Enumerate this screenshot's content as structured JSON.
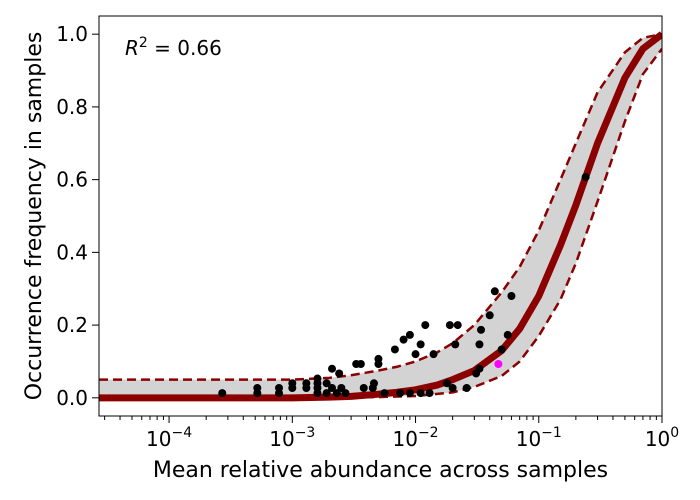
{
  "chart_data": {
    "type": "scatter",
    "xlabel": "Mean relative abundance across samples",
    "ylabel": "Occurrence frequency in samples",
    "x_scale": "log",
    "xlim": [
      2.7e-05,
      1.0
    ],
    "ylim": [
      -0.05,
      1.05
    ],
    "x_ticks": [
      {
        "value": 0.0001,
        "base": "10",
        "exp": "−4"
      },
      {
        "value": 0.001,
        "base": "10",
        "exp": "−3"
      },
      {
        "value": 0.01,
        "base": "10",
        "exp": "−2"
      },
      {
        "value": 0.1,
        "base": "10",
        "exp": "−1"
      },
      {
        "value": 1,
        "base": "10",
        "exp": "0"
      }
    ],
    "y_ticks": [
      "0.0",
      "0.2",
      "0.4",
      "0.6",
      "0.8",
      "1.0"
    ],
    "y_tick_values": [
      0.0,
      0.2,
      0.4,
      0.6,
      0.8,
      1.0
    ],
    "annotation": {
      "lhs": "R",
      "sup": "2",
      "rhs": " = 0.66"
    },
    "grid": false,
    "colors": {
      "fit_line": "#8b0000",
      "confidence_band": "#d3d3d3",
      "points": "#000000",
      "highlight_point": "#ff00ff"
    },
    "fit_curve": [
      {
        "x": 2.7e-05,
        "y": 0.0
      },
      {
        "x": 0.001,
        "y": 0.0
      },
      {
        "x": 0.002,
        "y": 0.002
      },
      {
        "x": 0.003,
        "y": 0.004
      },
      {
        "x": 0.005,
        "y": 0.01
      },
      {
        "x": 0.007,
        "y": 0.015
      },
      {
        "x": 0.01,
        "y": 0.022
      },
      {
        "x": 0.015,
        "y": 0.035
      },
      {
        "x": 0.02,
        "y": 0.05
      },
      {
        "x": 0.03,
        "y": 0.075
      },
      {
        "x": 0.05,
        "y": 0.13
      },
      {
        "x": 0.07,
        "y": 0.19
      },
      {
        "x": 0.1,
        "y": 0.28
      },
      {
        "x": 0.15,
        "y": 0.42
      },
      {
        "x": 0.2,
        "y": 0.53
      },
      {
        "x": 0.3,
        "y": 0.7
      },
      {
        "x": 0.5,
        "y": 0.88
      },
      {
        "x": 0.7,
        "y": 0.96
      },
      {
        "x": 1.0,
        "y": 1.0
      }
    ],
    "upper_bound": [
      {
        "x": 2.7e-05,
        "y": 0.05
      },
      {
        "x": 0.001,
        "y": 0.05
      },
      {
        "x": 0.002,
        "y": 0.055
      },
      {
        "x": 0.003,
        "y": 0.062
      },
      {
        "x": 0.005,
        "y": 0.075
      },
      {
        "x": 0.007,
        "y": 0.085
      },
      {
        "x": 0.01,
        "y": 0.1
      },
      {
        "x": 0.015,
        "y": 0.125
      },
      {
        "x": 0.02,
        "y": 0.15
      },
      {
        "x": 0.03,
        "y": 0.2
      },
      {
        "x": 0.05,
        "y": 0.29
      },
      {
        "x": 0.07,
        "y": 0.36
      },
      {
        "x": 0.1,
        "y": 0.46
      },
      {
        "x": 0.15,
        "y": 0.6
      },
      {
        "x": 0.2,
        "y": 0.7
      },
      {
        "x": 0.3,
        "y": 0.84
      },
      {
        "x": 0.5,
        "y": 0.95
      },
      {
        "x": 0.7,
        "y": 0.99
      },
      {
        "x": 1.0,
        "y": 1.0
      }
    ],
    "lower_bound": [
      {
        "x": 2.7e-05,
        "y": 0.0
      },
      {
        "x": 0.002,
        "y": 0.0
      },
      {
        "x": 0.005,
        "y": 0.002
      },
      {
        "x": 0.01,
        "y": 0.005
      },
      {
        "x": 0.02,
        "y": 0.015
      },
      {
        "x": 0.03,
        "y": 0.03
      },
      {
        "x": 0.05,
        "y": 0.06
      },
      {
        "x": 0.07,
        "y": 0.1
      },
      {
        "x": 0.1,
        "y": 0.17
      },
      {
        "x": 0.15,
        "y": 0.27
      },
      {
        "x": 0.2,
        "y": 0.37
      },
      {
        "x": 0.3,
        "y": 0.54
      },
      {
        "x": 0.5,
        "y": 0.76
      },
      {
        "x": 0.7,
        "y": 0.89
      },
      {
        "x": 1.0,
        "y": 0.96
      }
    ],
    "points": [
      {
        "x": 0.00027,
        "y": 0.013
      },
      {
        "x": 0.00052,
        "y": 0.013
      },
      {
        "x": 0.00052,
        "y": 0.027
      },
      {
        "x": 0.00078,
        "y": 0.013
      },
      {
        "x": 0.00078,
        "y": 0.027
      },
      {
        "x": 0.001,
        "y": 0.027
      },
      {
        "x": 0.001,
        "y": 0.04
      },
      {
        "x": 0.0013,
        "y": 0.027
      },
      {
        "x": 0.0013,
        "y": 0.04
      },
      {
        "x": 0.0016,
        "y": 0.013
      },
      {
        "x": 0.0016,
        "y": 0.027
      },
      {
        "x": 0.0016,
        "y": 0.04
      },
      {
        "x": 0.0016,
        "y": 0.053
      },
      {
        "x": 0.0019,
        "y": 0.013
      },
      {
        "x": 0.0019,
        "y": 0.04
      },
      {
        "x": 0.0021,
        "y": 0.027
      },
      {
        "x": 0.0021,
        "y": 0.08
      },
      {
        "x": 0.0023,
        "y": 0.013
      },
      {
        "x": 0.0024,
        "y": 0.067
      },
      {
        "x": 0.0025,
        "y": 0.027
      },
      {
        "x": 0.0027,
        "y": 0.013
      },
      {
        "x": 0.0033,
        "y": 0.093
      },
      {
        "x": 0.0036,
        "y": 0.093
      },
      {
        "x": 0.0038,
        "y": 0.027
      },
      {
        "x": 0.0045,
        "y": 0.027
      },
      {
        "x": 0.0046,
        "y": 0.04
      },
      {
        "x": 0.005,
        "y": 0.093
      },
      {
        "x": 0.005,
        "y": 0.107
      },
      {
        "x": 0.0056,
        "y": 0.013
      },
      {
        "x": 0.0068,
        "y": 0.133
      },
      {
        "x": 0.0075,
        "y": 0.013
      },
      {
        "x": 0.008,
        "y": 0.16
      },
      {
        "x": 0.009,
        "y": 0.013
      },
      {
        "x": 0.009,
        "y": 0.173
      },
      {
        "x": 0.01,
        "y": 0.12
      },
      {
        "x": 0.011,
        "y": 0.147
      },
      {
        "x": 0.011,
        "y": 0.013
      },
      {
        "x": 0.012,
        "y": 0.2
      },
      {
        "x": 0.013,
        "y": 0.013
      },
      {
        "x": 0.014,
        "y": 0.12
      },
      {
        "x": 0.018,
        "y": 0.04
      },
      {
        "x": 0.019,
        "y": 0.2
      },
      {
        "x": 0.02,
        "y": 0.027
      },
      {
        "x": 0.021,
        "y": 0.147
      },
      {
        "x": 0.022,
        "y": 0.2
      },
      {
        "x": 0.026,
        "y": 0.027
      },
      {
        "x": 0.031,
        "y": 0.067
      },
      {
        "x": 0.033,
        "y": 0.08
      },
      {
        "x": 0.033,
        "y": 0.147
      },
      {
        "x": 0.034,
        "y": 0.187
      },
      {
        "x": 0.04,
        "y": 0.227
      },
      {
        "x": 0.044,
        "y": 0.293
      },
      {
        "x": 0.05,
        "y": 0.133
      },
      {
        "x": 0.056,
        "y": 0.173
      },
      {
        "x": 0.06,
        "y": 0.28
      },
      {
        "x": 0.24,
        "y": 0.607
      }
    ],
    "highlight_points": [
      {
        "x": 0.047,
        "y": 0.093
      }
    ]
  }
}
